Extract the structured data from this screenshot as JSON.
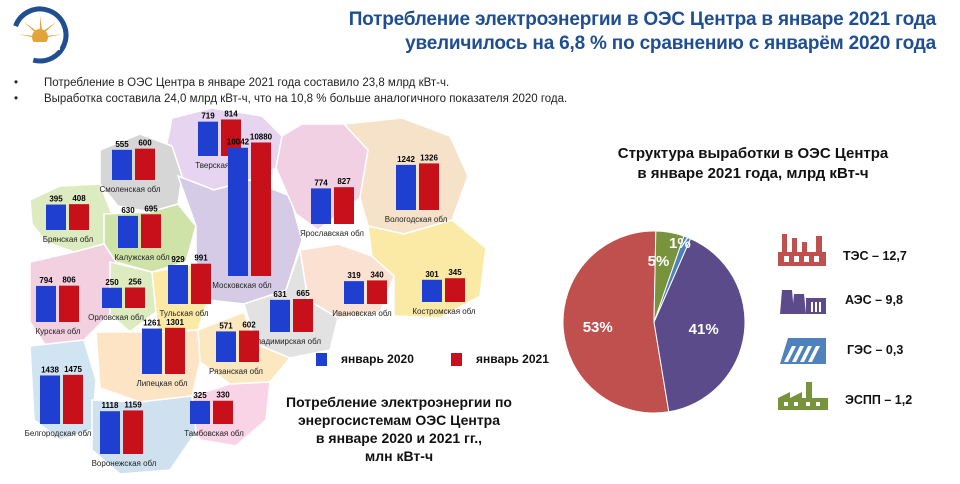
{
  "header": {
    "title_line1": "Потребление электроэнергии в ОЭС Центра в январе 2021 года",
    "title_line2": "увеличилось на 6,8 % по сравнению с январём 2020 года"
  },
  "bullets": [
    "Потребление  в ОЭС Центра  в январе 2021 года составило 23,8 млрд кВт-ч.",
    "Выработка  составила  24,0 млрд кВт-ч, что  на 10,8 % больше  аналогичного  показателя  2020 года."
  ],
  "colors": {
    "jan2020": "#1f3fd0",
    "jan2021": "#c8101a",
    "tes": "#c0504d",
    "aes": "#5b4b8a",
    "ges": "#4f81bd",
    "espp": "#77933c"
  },
  "legend": {
    "jan2020": "январь 2020",
    "jan2021": "январь 2021"
  },
  "map_title": {
    "line1": "Потребление электроэнергии по",
    "line2": "энергосистемам ОЭС Центра",
    "line3": "в январе 2020 и 2021 гг.,",
    "line4": "млн кВт-ч"
  },
  "structure_title": {
    "line1": "Структура выработки в ОЭС Центра",
    "line2": "в январе 2021 года, млрд кВт-ч"
  },
  "plants": [
    {
      "label": "ТЭС – 12,7",
      "icon": "thermal-plant-icon"
    },
    {
      "label": "АЭС – 9,8",
      "icon": "nuclear-plant-icon"
    },
    {
      "label": "ГЭС – 0,3",
      "icon": "hydro-plant-icon"
    },
    {
      "label": "ЭСПП – 1,2",
      "icon": "industrial-plant-icon"
    }
  ],
  "chart_data": [
    {
      "type": "bar",
      "title": "Потребление электроэнергии по энергосистемам ОЭС Центра в январе 2020 и 2021 гг., млн кВт-ч",
      "categories": [
        "Тверская обл",
        "Смоленская обл",
        "Брянская обл",
        "Калужская обл",
        "Московская обл",
        "Ярославская обл",
        "Вологодская обл",
        "Ивановская обл",
        "Костромская обл",
        "Курская обл",
        "Орловская обл",
        "Тульская обл",
        "Владимирская обл",
        "Рязанская обл",
        "Белгородская обл",
        "Липецкая обл",
        "Воронежская обл",
        "Тамбовская обл"
      ],
      "series": [
        {
          "name": "январь 2020",
          "values": [
            719,
            555,
            395,
            630,
            10042,
            774,
            1242,
            319,
            301,
            794,
            250,
            929,
            631,
            571,
            1438,
            1261,
            1118,
            325
          ]
        },
        {
          "name": "январь 2021",
          "values": [
            814,
            600,
            408,
            695,
            10880,
            827,
            1326,
            340,
            345,
            806,
            256,
            991,
            665,
            602,
            1475,
            1301,
            1159,
            330
          ]
        }
      ]
    },
    {
      "type": "pie",
      "title": "Структура выработки в ОЭС Центра в январе 2021 года, млрд кВт-ч",
      "labels": [
        "ТЭС",
        "АЭС",
        "ГЭС",
        "ЭСПП"
      ],
      "values": [
        12.7,
        9.8,
        0.3,
        1.2
      ],
      "percent_labels": [
        "53%",
        "41%",
        "1%",
        "5%"
      ]
    }
  ]
}
